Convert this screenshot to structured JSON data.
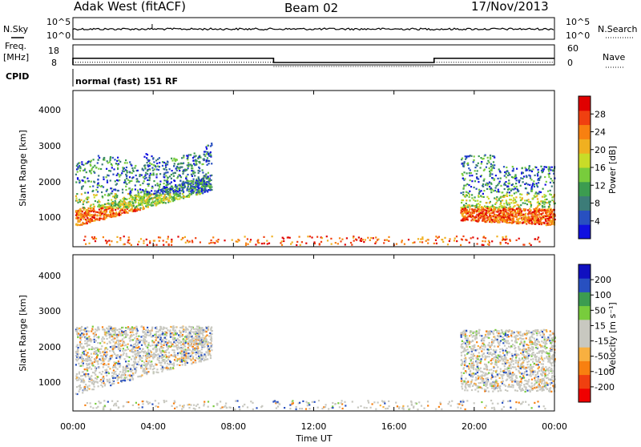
{
  "header": {
    "station": "Adak West (fitACF)",
    "beam": "Beam 02",
    "date": "17/Nov/2013"
  },
  "top_panels": {
    "nsky_label": "N.Sky",
    "nsky_ticks": [
      "10^5",
      "10^0"
    ],
    "nsearch_label": "N.Search",
    "nsearch_ticks": [
      "10^5",
      "10^0"
    ],
    "freq_label_line1": "Freq.",
    "freq_label_line2": "[MHz]",
    "freq_ticks": [
      "18",
      "8"
    ],
    "nave_label": "Nave",
    "nave_ticks": [
      "60",
      "0"
    ],
    "cpid_label": "CPID",
    "cpid_text": "normal (fast) 151 RF"
  },
  "colors": {
    "power_scale": [
      "#1010e0",
      "#2850c0",
      "#3c7c78",
      "#3c9c50",
      "#78cc3c",
      "#c8dc28",
      "#f0b020",
      "#f88010",
      "#f04010",
      "#e00000"
    ],
    "velocity_scale": [
      "#f00000",
      "#f04010",
      "#f88010",
      "#f8b040",
      "#c8c8c0",
      "#c8c8c0",
      "#78cc3c",
      "#3c9c50",
      "#2850c0",
      "#1010c0"
    ],
    "ground_scatter": "#c8c8c0"
  },
  "chart_data": [
    {
      "type": "line",
      "panel": "N.Sky / N.Search",
      "x": [
        "00:00",
        "04:00",
        "08:00",
        "12:00",
        "16:00",
        "20:00",
        "00:00"
      ],
      "ylabel_left": "N.Sky",
      "ylabel_right": "N.Search"
    },
    {
      "type": "line",
      "panel": "Freq. / Nave",
      "ylabel_left": "Freq. [MHz]",
      "ylabel_right": "Nave",
      "freq_segments": [
        {
          "from": "00:00",
          "to": "10:00",
          "value": 13.5
        },
        {
          "from": "10:00",
          "to": "18:00",
          "value": 10.0
        },
        {
          "from": "18:00",
          "to": "24:00",
          "value": 13.5
        }
      ]
    },
    {
      "type": "heatmap",
      "title": "",
      "ylabel": "Slant Range [km]",
      "yticks": [
        "4000",
        "3000",
        "2000",
        "1000"
      ],
      "colorbar_label": "Power [dB]",
      "colorbar_ticks": [
        "28",
        "24",
        "20",
        "16",
        "12",
        "8",
        "4"
      ]
    },
    {
      "type": "heatmap",
      "ylabel": "Slant Range [km]",
      "yticks": [
        "4000",
        "3000",
        "2000",
        "1000"
      ],
      "colorbar_label": "Velocity [m s⁻¹]",
      "colorbar_ticks": [
        "200",
        "100",
        "50",
        "15",
        "-15",
        "-50",
        "-100",
        "-200"
      ]
    }
  ],
  "time_axis": {
    "ticks": [
      "00:00",
      "04:00",
      "08:00",
      "12:00",
      "16:00",
      "20:00",
      "00:00"
    ],
    "label": "Time UT"
  }
}
